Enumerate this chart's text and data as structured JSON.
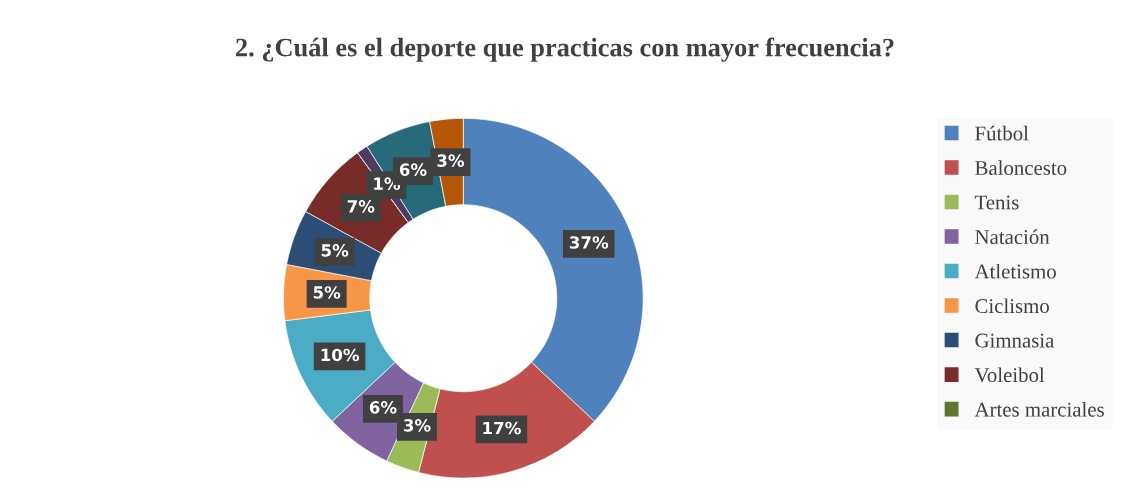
{
  "chart_data": {
    "type": "donut",
    "title": "2. ¿Cuál es el deporte que practicas con mayor frecuencia?",
    "categories": [
      "Fútbol",
      "Baloncesto",
      "Tenis",
      "Natación",
      "Atletismo",
      "Ciclismo",
      "Gimnasia",
      "Voleibol",
      "Artes marciales",
      null,
      null,
      null
    ],
    "values": [
      37,
      17,
      3,
      6,
      10,
      5,
      5,
      7,
      0,
      1,
      6,
      3
    ],
    "colors": [
      "#4f81bd",
      "#c0504d",
      "#9bbb59",
      "#8064a2",
      "#4bacc6",
      "#f79646",
      "#2c4d75",
      "#772c2a",
      "#5f7530",
      "#4d3b62",
      "#276a7c",
      "#b65708"
    ],
    "value_labels": [
      "37%",
      "17%",
      "3%",
      "6%",
      "10%",
      "5%",
      "5%",
      "7%",
      null,
      "1%",
      "6%",
      "3%"
    ],
    "legend": "right"
  }
}
